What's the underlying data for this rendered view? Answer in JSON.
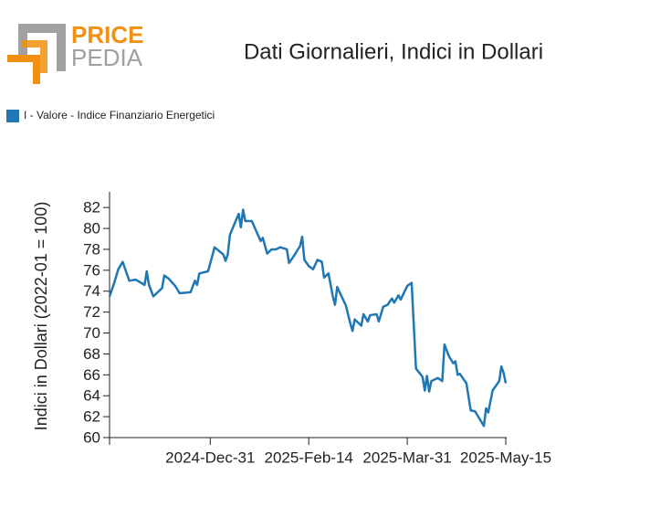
{
  "logo": {
    "top": "PRICE",
    "bottom": "PEDIA"
  },
  "chart_data": {
    "type": "line",
    "title": "Dati Giornalieri, Indici in Dollari",
    "ylabel": "Indici in Dollari (2022-01 = 100)",
    "legend": "top-left",
    "grid": false,
    "x": [
      "2024-11-15",
      "2024-11-17",
      "2024-11-19",
      "2024-11-21",
      "2024-11-24",
      "2024-11-27",
      "2024-12-01",
      "2024-12-02",
      "2024-12-03",
      "2024-12-05",
      "2024-12-09",
      "2024-12-10",
      "2024-12-12",
      "2024-12-15",
      "2024-12-17",
      "2024-12-22",
      "2024-12-24",
      "2024-12-25",
      "2024-12-26",
      "2024-12-30",
      "2025-01-02",
      "2025-01-06",
      "2025-01-07",
      "2025-01-08",
      "2025-01-09",
      "2025-01-13",
      "2025-01-14",
      "2025-01-15",
      "2025-01-16",
      "2025-01-19",
      "2025-01-23",
      "2025-01-24",
      "2025-01-26",
      "2025-01-28",
      "2025-01-30",
      "2025-02-01",
      "2025-02-04",
      "2025-02-05",
      "2025-02-07",
      "2025-02-10",
      "2025-02-11",
      "2025-02-12",
      "2025-02-14",
      "2025-02-16",
      "2025-02-18",
      "2025-02-20",
      "2025-02-21",
      "2025-02-23",
      "2025-02-25",
      "2025-02-26",
      "2025-02-27",
      "2025-03-01",
      "2025-03-03",
      "2025-03-05",
      "2025-03-06",
      "2025-03-07",
      "2025-03-10",
      "2025-03-11",
      "2025-03-13",
      "2025-03-14",
      "2025-03-17",
      "2025-03-18",
      "2025-03-20",
      "2025-03-22",
      "2025-03-24",
      "2025-03-25",
      "2025-03-27",
      "2025-03-28",
      "2025-03-31",
      "2025-04-02",
      "2025-04-04",
      "2025-04-07",
      "2025-04-08",
      "2025-04-09",
      "2025-04-10",
      "2025-04-11",
      "2025-04-12",
      "2025-04-14",
      "2025-04-16",
      "2025-04-17",
      "2025-04-19",
      "2025-04-21",
      "2025-04-22",
      "2025-04-23",
      "2025-04-24",
      "2025-04-27",
      "2025-04-29",
      "2025-05-01",
      "2025-05-03",
      "2025-05-05",
      "2025-05-06",
      "2025-05-07",
      "2025-05-09",
      "2025-05-12",
      "2025-05-13",
      "2025-05-14",
      "2025-05-15"
    ],
    "series": [
      {
        "name": "I - Valore - Indice Finanziario Energetici",
        "color": "#1f77b4",
        "values": [
          73.5,
          74.7,
          76.1,
          76.8,
          75.0,
          75.1,
          74.6,
          75.9,
          74.6,
          73.5,
          74.3,
          75.5,
          75.2,
          74.5,
          73.8,
          73.9,
          75.0,
          74.6,
          75.7,
          75.9,
          78.2,
          77.5,
          76.9,
          77.5,
          79.4,
          81.4,
          80.1,
          81.8,
          80.7,
          80.7,
          78.8,
          79.1,
          77.6,
          78.0,
          78.0,
          78.2,
          78.0,
          76.7,
          77.3,
          78.3,
          79.2,
          77.0,
          76.4,
          76.1,
          77.0,
          76.8,
          75.3,
          75.7,
          73.5,
          72.7,
          74.4,
          73.5,
          72.6,
          70.9,
          70.2,
          71.3,
          70.7,
          71.8,
          71.1,
          71.7,
          71.8,
          71.1,
          72.5,
          72.7,
          73.3,
          72.9,
          73.6,
          73.2,
          74.5,
          74.8,
          66.6,
          65.8,
          64.5,
          65.9,
          64.4,
          65.4,
          65.5,
          65.7,
          65.4,
          68.9,
          67.8,
          67.1,
          67.3,
          66.0,
          66.1,
          65.2,
          62.6,
          62.5,
          61.8,
          61.1,
          62.8,
          62.4,
          64.5,
          65.4,
          66.8,
          66.2,
          65.2
        ]
      }
    ],
    "xlim": [
      "2024-11-15",
      "2025-05-15"
    ],
    "xticks": [
      {
        "value": "2024-12-31",
        "label": "2024-Dec-31"
      },
      {
        "value": "2025-02-14",
        "label": "2025-Feb-14"
      },
      {
        "value": "2025-03-31",
        "label": "2025-Mar-31"
      },
      {
        "value": "2025-05-15",
        "label": "2025-May-15"
      }
    ],
    "ylim": [
      60,
      83.5
    ],
    "yticks": [
      60,
      62,
      64,
      66,
      68,
      70,
      72,
      74,
      76,
      78,
      80,
      82
    ]
  }
}
